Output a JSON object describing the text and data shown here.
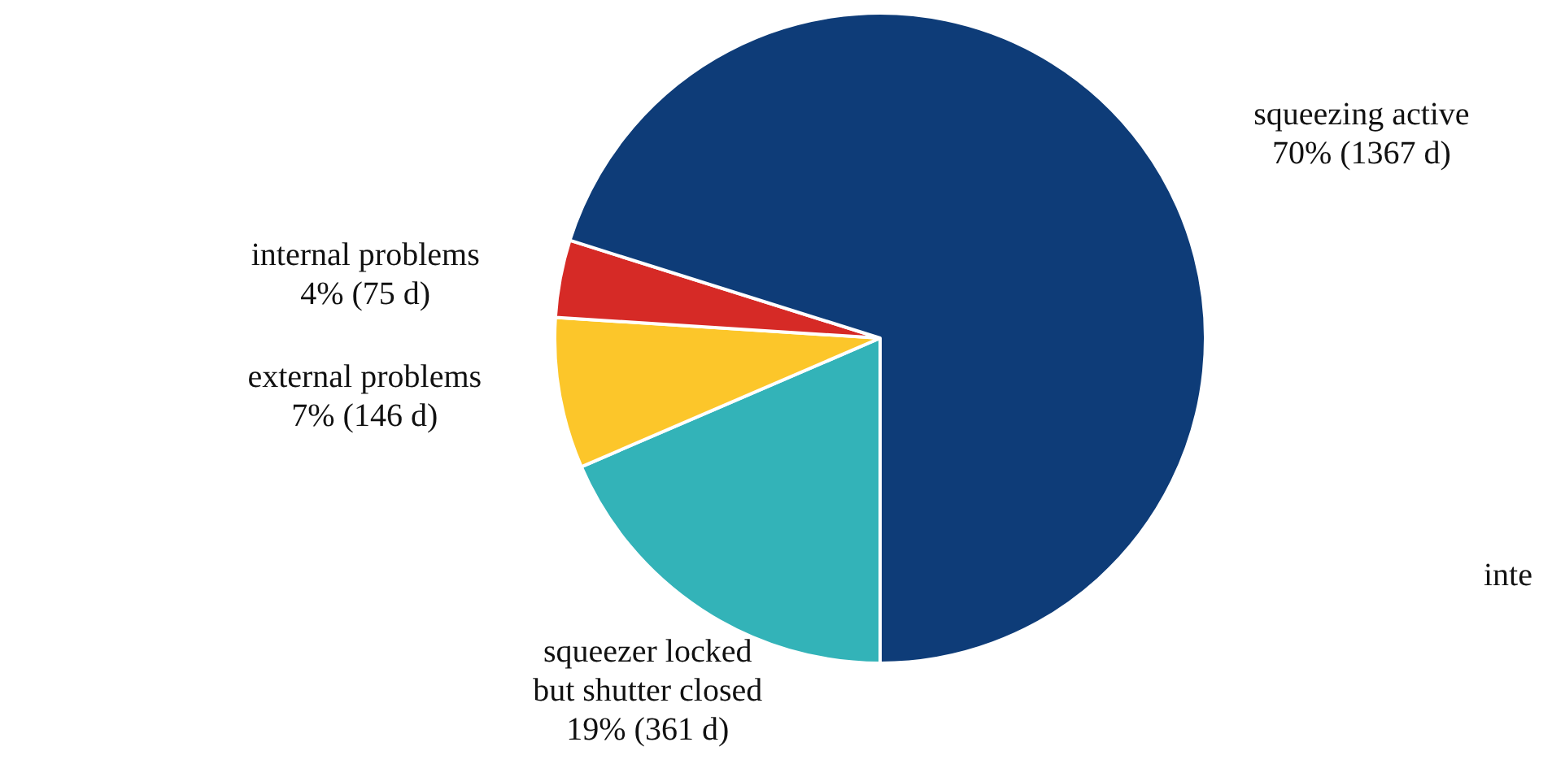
{
  "chart_data": {
    "type": "pie",
    "categories": [
      "squeezer locked but shutter closed",
      "external problems",
      "internal problems",
      "squeezing active"
    ],
    "values": [
      361,
      146,
      75,
      1367
    ],
    "value_labels": [
      "19% (361 d)",
      "7% (146 d)",
      "4% (75 d)",
      "70% (1367 d)"
    ],
    "colors": [
      "#33b3b8",
      "#fcc62a",
      "#d62a26",
      "#0e3c78"
    ],
    "annotations": [
      "inte"
    ]
  }
}
